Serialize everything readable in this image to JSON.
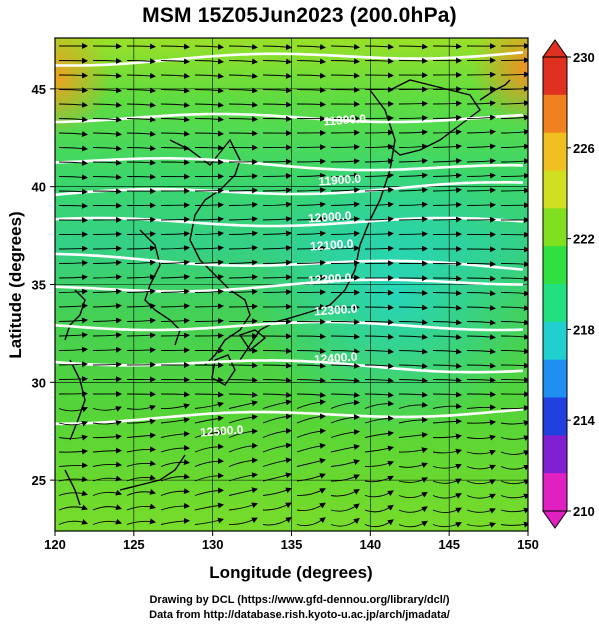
{
  "title": "MSM 15Z05Jun2023 (200.0hPa)",
  "axes": {
    "xlabel": "Longitude (degrees)",
    "ylabel": "Latitude  (degrees)",
    "x_ticks": [
      "120",
      "125",
      "130",
      "135",
      "140",
      "145",
      "150"
    ],
    "y_ticks": [
      "25",
      "30",
      "35",
      "40",
      "45"
    ],
    "x_range": [
      120,
      150
    ],
    "y_range": [
      22.4,
      47.6
    ]
  },
  "contours": {
    "labels": [
      "11300.0",
      "11900.0",
      "12000.0",
      "12100.0",
      "12200.0",
      "12300.0",
      "12400.0",
      "12500.0"
    ]
  },
  "colorbar": {
    "ticks": [
      "230",
      "226",
      "222",
      "218",
      "214",
      "210"
    ],
    "range": [
      210,
      230
    ],
    "colors": [
      "#e020c0",
      "#8020d0",
      "#2040e0",
      "#2090f0",
      "#20d0d0",
      "#20e080",
      "#30e040",
      "#80e020",
      "#d0e020",
      "#f0c020",
      "#f08020",
      "#e03020"
    ]
  },
  "credits": {
    "line1": "Drawing by DCL (https://www.gfd-dennou.org/library/dcl/)",
    "line2": "Data from http://database.rish.kyoto-u.ac.jp/arch/jmadata/"
  }
}
